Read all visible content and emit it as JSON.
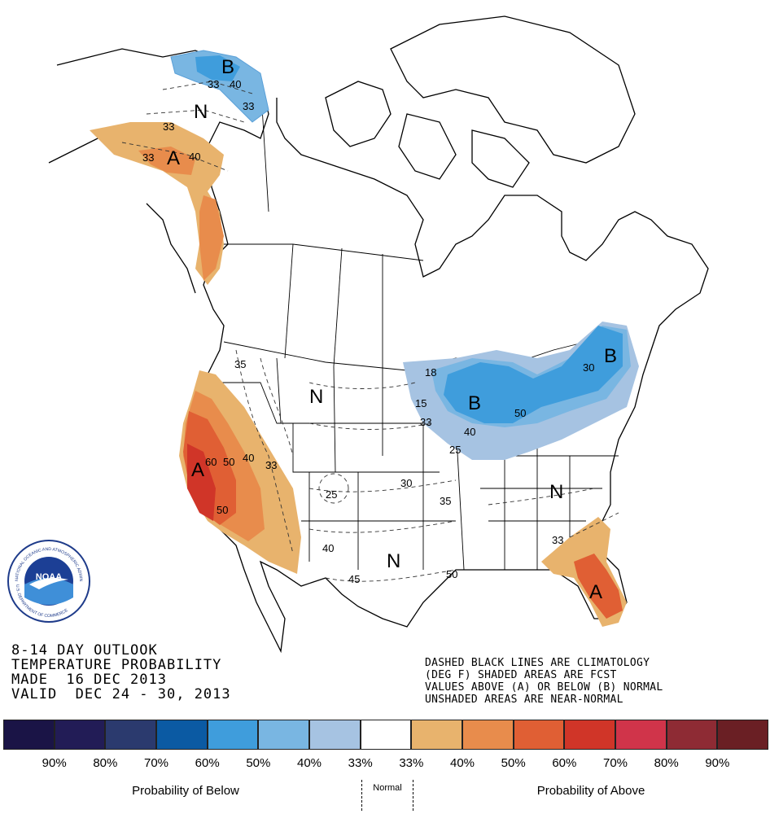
{
  "title_lines": [
    "8-14 DAY OUTLOOK",
    "TEMPERATURE PROBABILITY",
    "MADE  16 DEC 2013",
    "VALID  DEC 24 - 30, 2013"
  ],
  "note_lines": [
    "DASHED BLACK LINES ARE CLIMATOLOGY",
    "(DEG F) SHADED AREAS ARE FCST",
    "VALUES ABOVE (A) OR BELOW (B) NORMAL",
    "UNSHADED AREAS ARE NEAR-NORMAL"
  ],
  "logo": {
    "text": "NOAA",
    "ring_top": "NATIONAL OCEANIC AND ATMOSPHERIC ADMINISTRATION",
    "ring_bottom": "U.S. DEPARTMENT OF COMMERCE"
  },
  "map_labels": {
    "alaska_b": "B",
    "alaska_n": "N",
    "alaska_a": "A",
    "west_a": "A",
    "northern_plains_n": "N",
    "southern_plains_n": "N",
    "great_lakes_b": "B",
    "new_england_b": "B",
    "southeast_n": "N",
    "florida_a": "A"
  },
  "contour_labels": {
    "ak1": "33",
    "ak2": "40",
    "ak3": "33",
    "ak4": "33",
    "ak5": "40",
    "ak6": "33",
    "w35": "35",
    "w60": "60",
    "w50a": "50",
    "w40": "40",
    "w33": "33",
    "w50b": "50",
    "c25a": "25",
    "c30": "30",
    "c35": "35",
    "c40": "40",
    "c45": "45",
    "c50": "50",
    "gl15": "15",
    "gl33": "33",
    "gl40": "40",
    "gl50": "50",
    "gl25": "25",
    "gl18": "18",
    "ne30": "30",
    "fl33": "33"
  },
  "legend": {
    "colors": [
      "#1a1446",
      "#221c56",
      "#2b3a6e",
      "#0b5aa3",
      "#3f9ddc",
      "#79b6e2",
      "#a6c3e2",
      "#ffffff",
      "#e8b36d",
      "#e88c4c",
      "#e05f34",
      "#d03528",
      "#d0344a",
      "#8e2b34",
      "#6a1f24"
    ],
    "ticks": [
      "90%",
      "80%",
      "70%",
      "60%",
      "50%",
      "40%",
      "33%",
      "33%",
      "40%",
      "50%",
      "60%",
      "70%",
      "80%",
      "90%"
    ],
    "below_caption": "Probability of Below",
    "normal_caption": "Normal",
    "above_caption": "Probability of Above"
  }
}
